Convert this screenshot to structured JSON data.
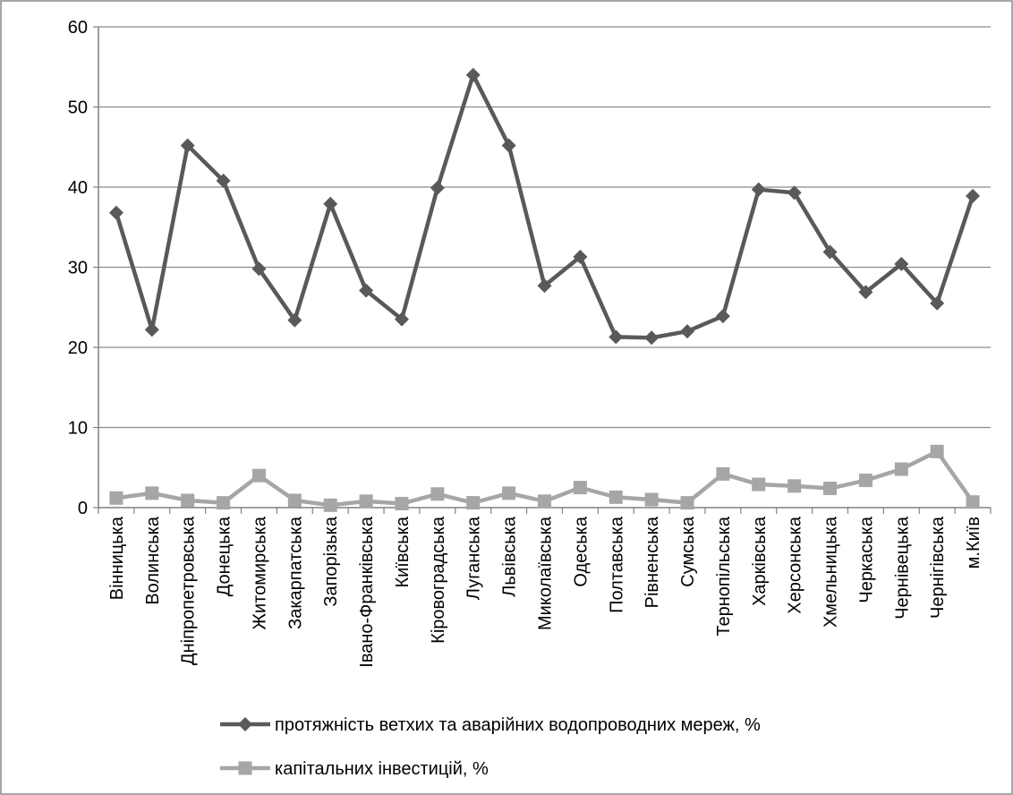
{
  "chart_data": {
    "type": "line",
    "categories": [
      "Вінницька",
      "Волинська",
      "Дніпропетровська",
      "Донецька",
      "Житомирська",
      "Закарпатська",
      "Запорізька",
      "Івано-Франківська",
      "Київська",
      "Кіровоградська",
      "Луганська",
      "Львівська",
      "Миколаївська",
      "Одеська",
      "Полтавська",
      "Рівненська",
      "Сумська",
      "Тернопільська",
      "Харківська",
      "Херсонська",
      "Хмельницька",
      "Черкаська",
      "Чернівецька",
      "Чернігівська",
      "м.Київ"
    ],
    "series": [
      {
        "name": "протяжність ветхих та аварійних водопроводних мереж, %",
        "color": "#595959",
        "marker": "diamond",
        "values": [
          36.8,
          22.2,
          45.2,
          40.8,
          29.8,
          23.4,
          37.9,
          27.1,
          23.5,
          39.9,
          54.0,
          45.2,
          27.7,
          31.3,
          21.3,
          21.2,
          22.0,
          23.9,
          39.7,
          39.3,
          31.9,
          26.9,
          30.4,
          25.5,
          38.9
        ]
      },
      {
        "name": "капітальних інвестицій, %",
        "color": "#a6a6a6",
        "marker": "square",
        "values": [
          1.2,
          1.8,
          0.9,
          0.6,
          4.0,
          0.9,
          0.3,
          0.8,
          0.5,
          1.7,
          0.6,
          1.8,
          0.8,
          2.5,
          1.3,
          1.0,
          0.6,
          4.2,
          2.9,
          2.7,
          2.4,
          3.4,
          4.8,
          7.0,
          0.7
        ]
      }
    ],
    "yticks": [
      "0",
      "10",
      "20",
      "30",
      "40",
      "50",
      "60"
    ],
    "ylim": [
      0,
      60
    ],
    "grid": true,
    "legend_position": "bottom"
  }
}
